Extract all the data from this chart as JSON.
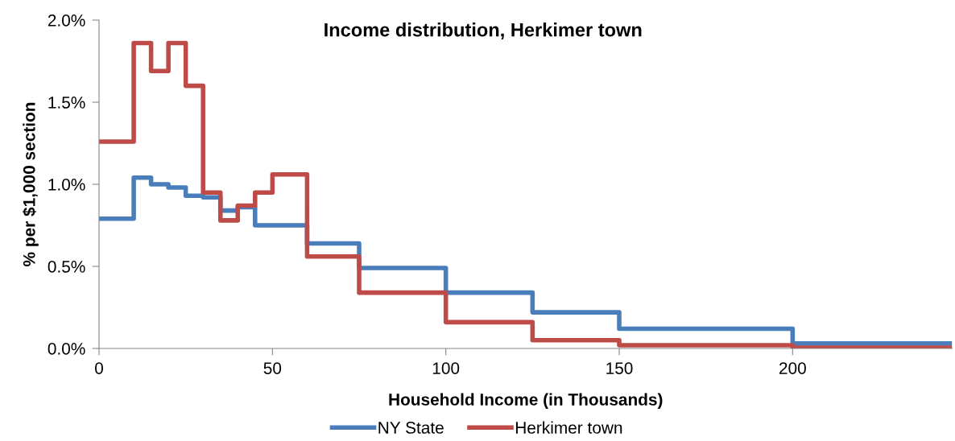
{
  "chart_data": {
    "type": "histogram",
    "title": "Income distribution, Herkimer town",
    "xlabel": "Household Income (in Thousands)",
    "ylabel": "% per $1,000 section",
    "bins": [
      0,
      10,
      15,
      20,
      25,
      30,
      35,
      40,
      45,
      50,
      60,
      75,
      100,
      125,
      150,
      200,
      246
    ],
    "series": [
      {
        "name": "NY State",
        "color": "#4a7ebb",
        "values": [
          0.79,
          1.04,
          1.0,
          0.98,
          0.93,
          0.92,
          0.84,
          0.86,
          0.75,
          0.75,
          0.64,
          0.49,
          0.34,
          0.22,
          0.12,
          0.03
        ]
      },
      {
        "name": "Herkimer town",
        "color": "#be4b48",
        "values": [
          1.26,
          1.86,
          1.69,
          1.86,
          1.6,
          0.95,
          0.78,
          0.87,
          0.95,
          1.06,
          0.56,
          0.34,
          0.16,
          0.05,
          0.02,
          0.005
        ]
      }
    ],
    "xlim": [
      0,
      246
    ],
    "xticks": [
      0,
      50,
      100,
      150,
      200
    ],
    "ylim": [
      0,
      2.0
    ],
    "yticks": [
      {
        "value": 0,
        "label": "0.0%"
      },
      {
        "value": 0.5,
        "label": "0.5%"
      },
      {
        "value": 1.0,
        "label": "1.0%"
      },
      {
        "value": 1.5,
        "label": "1.5%"
      },
      {
        "value": 2.0,
        "label": "2.0%"
      }
    ],
    "grid": false,
    "legend": "bottom"
  }
}
